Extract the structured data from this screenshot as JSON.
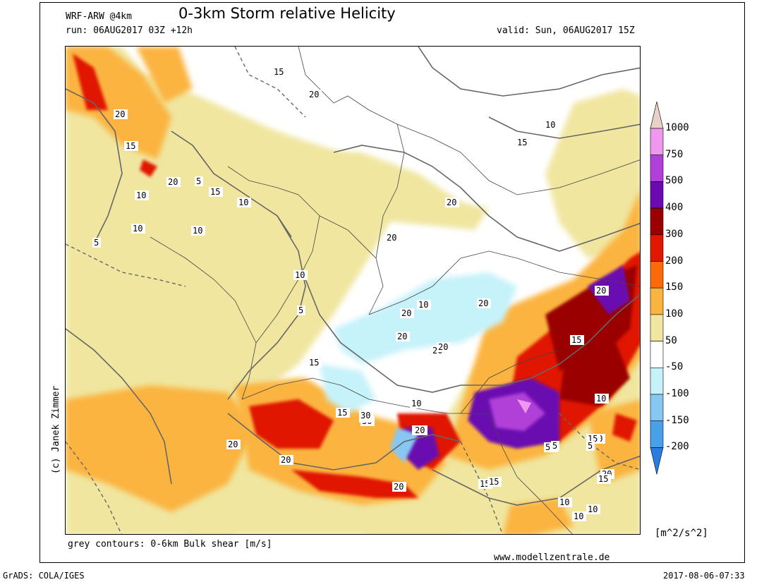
{
  "header": {
    "model": "WRF-ARW @4km",
    "title": "0-3km Storm relative Helicity",
    "run": "run: 06AUG2017 03Z +12h",
    "valid": "valid: Sun, 06AUG2017 15Z"
  },
  "footer": {
    "contours_note": "grey contours: 0-6km Bulk shear [m/s]",
    "website": "www.modellzentrale.de",
    "software": "GrADS: COLA/IGES",
    "timestamp": "2017-08-06-07:33",
    "copyright": "(c) Janek Zimmer"
  },
  "colorbar": {
    "unit": "[m^2/s^2]",
    "levels": [
      "1000",
      "750",
      "500",
      "400",
      "300",
      "200",
      "150",
      "100",
      "50",
      "-50",
      "-100",
      "-150",
      "-200"
    ],
    "colors": [
      "#e8d2c8",
      "#f098f0",
      "#b040d8",
      "#6a0ab0",
      "#9a0000",
      "#e01800",
      "#fb6a08",
      "#fbb440",
      "#f0e6a0",
      "#ffffff",
      "#c6f2fa",
      "#86c8f2",
      "#4aa0e8",
      "#2a7ce0"
    ]
  },
  "map": {
    "contour_labels": [
      "20",
      "15",
      "10",
      "5",
      "20",
      "15",
      "10",
      "5",
      "20",
      "15",
      "10",
      "20",
      "20",
      "20",
      "30",
      "20",
      "15",
      "20",
      "10",
      "15",
      "10",
      "5",
      "10",
      "15",
      "20",
      "30",
      "20",
      "20",
      "20",
      "20",
      "20",
      "15",
      "15",
      "5",
      "10",
      "20",
      "15",
      "15",
      "15",
      "5",
      "10",
      "10",
      "10",
      "10",
      "20",
      "10",
      "20",
      "15",
      "30",
      "5",
      "10",
      "15"
    ]
  }
}
